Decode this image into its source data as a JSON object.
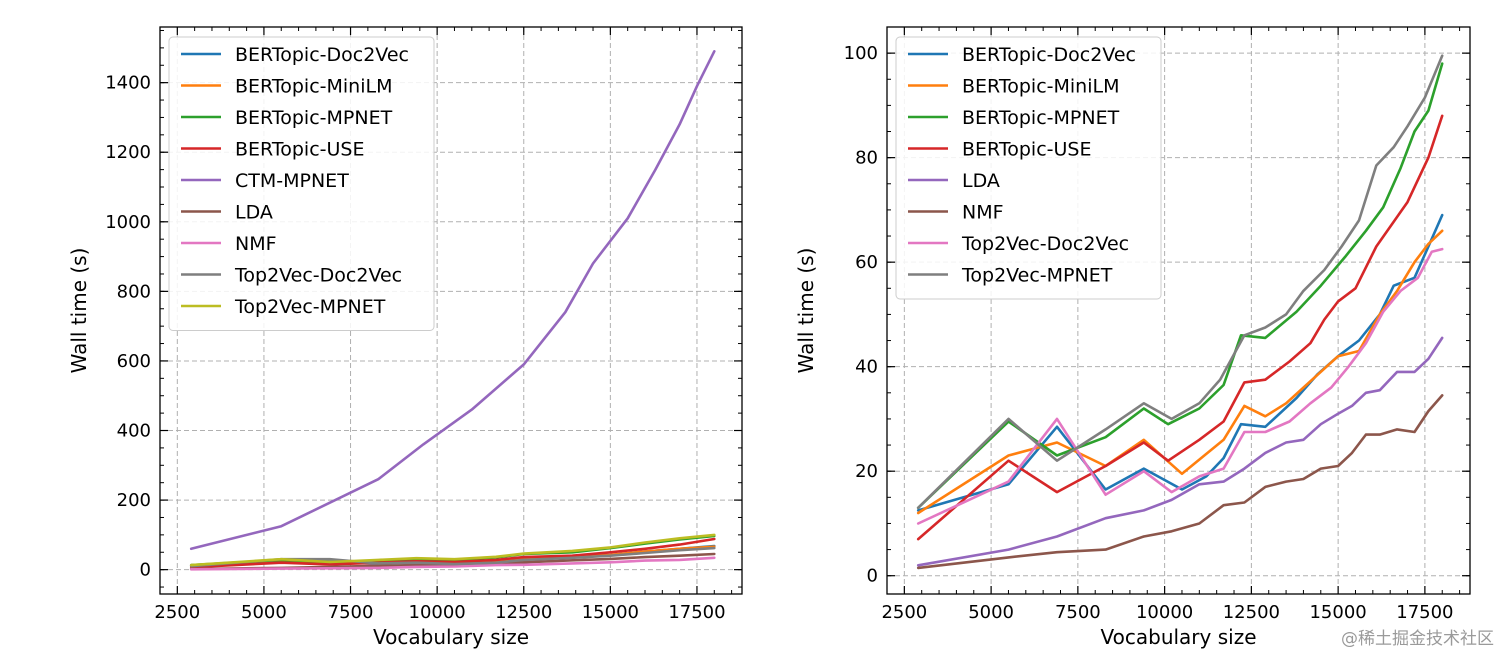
{
  "chart_data": [
    {
      "type": "line",
      "title": "",
      "xlabel": "Vocabulary size",
      "ylabel": "Wall time (s)",
      "xlim": [
        2000,
        18800
      ],
      "ylim": [
        -70,
        1560
      ],
      "xticks": [
        2500,
        5000,
        7500,
        10000,
        12500,
        15000,
        17500
      ],
      "yticks": [
        0,
        200,
        400,
        600,
        800,
        1000,
        1200,
        1400
      ],
      "grid": true,
      "legend_position": "top-left",
      "series": [
        {
          "name": "BERTopic-Doc2Vec",
          "color": "#1f77b4",
          "x": [
            2900,
            5500,
            6900,
            8300,
            9400,
            10500,
            11700,
            12500,
            13900,
            15000,
            16000,
            17000,
            18000
          ],
          "y": [
            12,
            28,
            20,
            18,
            22,
            18,
            24,
            30,
            36,
            42,
            52,
            60,
            68
          ]
        },
        {
          "name": "BERTopic-MiniLM",
          "color": "#ff7f0e",
          "x": [
            2900,
            5500,
            6900,
            8300,
            9400,
            10500,
            11700,
            12500,
            13900,
            15000,
            16000,
            17000,
            18000
          ],
          "y": [
            12,
            25,
            22,
            21,
            25,
            20,
            26,
            33,
            37,
            42,
            52,
            60,
            66
          ]
        },
        {
          "name": "BERTopic-MPNET",
          "color": "#2ca02c",
          "x": [
            2900,
            5500,
            6900,
            8300,
            9400,
            10500,
            11700,
            12500,
            13900,
            15000,
            16000,
            17000,
            18000
          ],
          "y": [
            13,
            28,
            22,
            25,
            30,
            28,
            35,
            45,
            50,
            62,
            75,
            87,
            97
          ]
        },
        {
          "name": "BERTopic-USE",
          "color": "#d62728",
          "x": [
            2900,
            5500,
            6900,
            8300,
            9400,
            10500,
            11700,
            12500,
            13900,
            15000,
            16000,
            17000,
            18000
          ],
          "y": [
            7,
            20,
            15,
            20,
            24,
            22,
            28,
            36,
            40,
            50,
            60,
            72,
            88
          ]
        },
        {
          "name": "CTM-MPNET",
          "color": "#9467bd",
          "x": [
            2900,
            5500,
            8300,
            9600,
            11000,
            12500,
            13700,
            14500,
            15500,
            16300,
            17000,
            17500,
            18000
          ],
          "y": [
            60,
            125,
            260,
            360,
            460,
            590,
            740,
            880,
            1010,
            1150,
            1280,
            1390,
            1490
          ]
        },
        {
          "name": "LDA",
          "color": "#8c564b",
          "x": [
            2900,
            5500,
            6900,
            8300,
            9400,
            10500,
            11700,
            12500,
            13900,
            15000,
            16000,
            17000,
            18000
          ],
          "y": [
            2,
            5,
            8,
            11,
            13,
            15,
            18,
            21,
            27,
            31,
            36,
            40,
            45
          ]
        },
        {
          "name": "NMF",
          "color": "#e377c2",
          "x": [
            2900,
            5500,
            6900,
            8300,
            9400,
            10500,
            11700,
            12500,
            13900,
            15000,
            16000,
            17000,
            18000
          ],
          "y": [
            1,
            3,
            4,
            5,
            8,
            9,
            13,
            14,
            18,
            21,
            26,
            28,
            34
          ]
        },
        {
          "name": "Top2Vec-Doc2Vec",
          "color": "#7f7f7f",
          "x": [
            2900,
            5500,
            6900,
            8300,
            9400,
            10500,
            11700,
            12500,
            13900,
            15000,
            16000,
            17000,
            18000
          ],
          "y": [
            10,
            30,
            30,
            18,
            20,
            16,
            20,
            28,
            34,
            40,
            48,
            56,
            62
          ]
        },
        {
          "name": "Top2Vec-MPNET",
          "color": "#bcbd22",
          "x": [
            2900,
            5500,
            6900,
            8300,
            9400,
            10500,
            11700,
            12500,
            13900,
            15000,
            16000,
            17000,
            18000
          ],
          "y": [
            13,
            30,
            22,
            28,
            33,
            30,
            37,
            46,
            54,
            64,
            78,
            90,
            100
          ]
        }
      ]
    },
    {
      "type": "line",
      "title": "",
      "xlabel": "Vocabulary size",
      "ylabel": "Wall time (s)",
      "xlim": [
        2000,
        18800
      ],
      "ylim": [
        -3.5,
        105
      ],
      "xticks": [
        2500,
        5000,
        7500,
        10000,
        12500,
        15000,
        17500
      ],
      "yticks": [
        0,
        20,
        40,
        60,
        80,
        100
      ],
      "grid": true,
      "legend_position": "top-left",
      "series": [
        {
          "name": "BERTopic-Doc2Vec",
          "color": "#1f77b4",
          "x": [
            2900,
            5500,
            6900,
            8300,
            9400,
            10500,
            11200,
            11700,
            12200,
            12900,
            13800,
            14400,
            15000,
            15600,
            16200,
            16600,
            17200,
            17600,
            18000
          ],
          "y": [
            12.5,
            17.5,
            28.5,
            16.5,
            20.5,
            16.5,
            19,
            22.5,
            29,
            28.5,
            34,
            38.5,
            42,
            45,
            50,
            55.5,
            57,
            63,
            69
          ]
        },
        {
          "name": "BERTopic-MiniLM",
          "color": "#ff7f0e",
          "x": [
            2900,
            5500,
            6900,
            8300,
            9400,
            10500,
            11700,
            12300,
            12900,
            13500,
            14000,
            15000,
            15600,
            16200,
            16700,
            17200,
            17600,
            18000
          ],
          "y": [
            12,
            23,
            25.5,
            21,
            26,
            19.5,
            26,
            32.5,
            30.5,
            33,
            36,
            42,
            43,
            50,
            54.5,
            60,
            63.5,
            66
          ]
        },
        {
          "name": "BERTopic-MPNET",
          "color": "#2ca02c",
          "x": [
            2900,
            5500,
            6900,
            8300,
            9400,
            10100,
            11000,
            11700,
            12200,
            12900,
            13800,
            14500,
            15200,
            15800,
            16300,
            16800,
            17200,
            17600,
            18000
          ],
          "y": [
            13,
            29.5,
            23,
            26.5,
            32,
            29,
            32,
            36.5,
            46,
            45.5,
            50.5,
            55.5,
            61,
            66,
            70.5,
            78,
            85,
            89,
            98
          ]
        },
        {
          "name": "BERTopic-USE",
          "color": "#d62728",
          "x": [
            2900,
            5500,
            6900,
            8300,
            9400,
            10100,
            11000,
            11700,
            12300,
            12900,
            13600,
            14200,
            14600,
            15000,
            15500,
            16100,
            17000,
            17600,
            18000
          ],
          "y": [
            7,
            22,
            16,
            21,
            25.5,
            22,
            26,
            29.5,
            37,
            37.5,
            41,
            44.5,
            49,
            52.5,
            55,
            63,
            71.5,
            80,
            88
          ]
        },
        {
          "name": "LDA",
          "color": "#9467bd",
          "x": [
            2900,
            5500,
            6900,
            8300,
            9400,
            10200,
            11000,
            11700,
            12300,
            12900,
            13500,
            14000,
            14500,
            15000,
            15400,
            15800,
            16200,
            16700,
            17200,
            17600,
            18000
          ],
          "y": [
            2,
            5,
            7.5,
            11,
            12.5,
            14.5,
            17.5,
            18,
            20.5,
            23.5,
            25.5,
            26,
            29,
            31,
            32.5,
            35,
            35.5,
            39,
            39,
            41.5,
            45.5
          ]
        },
        {
          "name": "NMF",
          "color": "#8c564b",
          "x": [
            2900,
            5500,
            6900,
            8300,
            9400,
            10200,
            11000,
            11700,
            12300,
            12900,
            13500,
            14000,
            14500,
            15000,
            15400,
            15800,
            16200,
            16700,
            17200,
            17600,
            18000
          ],
          "y": [
            1.5,
            3.5,
            4.5,
            5,
            7.5,
            8.5,
            10,
            13.5,
            14,
            17,
            18,
            18.5,
            20.5,
            21,
            23.5,
            27,
            27,
            28,
            27.5,
            31.5,
            34.5
          ]
        },
        {
          "name": "Top2Vec-Doc2Vec",
          "color": "#e377c2",
          "x": [
            2900,
            5500,
            6900,
            8300,
            9400,
            10200,
            11000,
            11700,
            12300,
            12900,
            13600,
            14200,
            14800,
            15300,
            15800,
            16300,
            16800,
            17300,
            17700,
            18000
          ],
          "y": [
            10,
            18,
            30,
            15.5,
            20,
            16,
            19,
            20.5,
            27.5,
            27.5,
            29.5,
            33,
            36,
            40,
            44.5,
            50.5,
            54.5,
            57,
            62,
            62.5
          ]
        },
        {
          "name": "Top2Vec-MPNET",
          "color": "#7f7f7f",
          "x": [
            2900,
            5500,
            6900,
            8300,
            9400,
            10200,
            11000,
            11600,
            12300,
            12900,
            13500,
            14000,
            14600,
            15100,
            15600,
            16100,
            16600,
            17000,
            17500,
            18000
          ],
          "y": [
            13,
            30,
            22,
            28,
            33,
            30,
            33,
            37.5,
            46,
            47.5,
            50,
            54.5,
            58.5,
            63,
            68,
            78.5,
            82,
            86,
            91.5,
            99.5
          ]
        }
      ]
    }
  ],
  "watermark": "@稀土掘金技术社区"
}
